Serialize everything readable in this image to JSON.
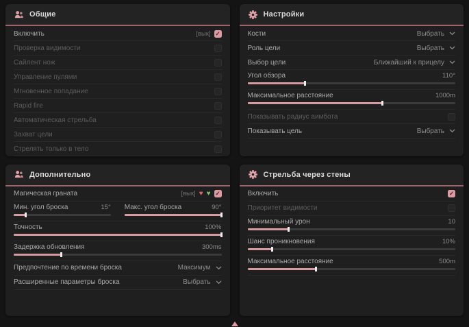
{
  "colors": {
    "accent": "#dc9ba2",
    "accent_line": "#9c646b",
    "panel_bg": "#1f1f1f",
    "page_bg": "#141414"
  },
  "ui": {
    "check_glyph": "✓"
  },
  "panels": [
    {
      "id": "general",
      "icon": "people-icon",
      "title": "Общие",
      "rows": [
        {
          "type": "checkbox",
          "label": "Включить",
          "hint": "[вык]",
          "checked": true,
          "dim": false
        },
        {
          "type": "checkbox",
          "label": "Проверка видимости",
          "checked": false,
          "dim": true
        },
        {
          "type": "checkbox",
          "label": "Сайлент нож",
          "checked": false,
          "dim": true
        },
        {
          "type": "checkbox",
          "label": "Управление пулями",
          "checked": false,
          "dim": true
        },
        {
          "type": "checkbox",
          "label": "Мгновенное попадание",
          "checked": false,
          "dim": true
        },
        {
          "type": "checkbox",
          "label": "Rapid fire",
          "checked": false,
          "dim": true
        },
        {
          "type": "checkbox",
          "label": "Автоматическая стрельба",
          "checked": false,
          "dim": true
        },
        {
          "type": "checkbox",
          "label": "Захват цели",
          "checked": false,
          "dim": true
        },
        {
          "type": "checkbox",
          "label": "Стрелять только в тело",
          "checked": false,
          "dim": true
        }
      ]
    },
    {
      "id": "settings",
      "icon": "gear-icon",
      "title": "Настройки",
      "rows": [
        {
          "type": "select",
          "label": "Кости",
          "value": "Выбрать"
        },
        {
          "type": "select",
          "label": "Роль цели",
          "value": "Выбрать"
        },
        {
          "type": "select",
          "label": "Выбор цели",
          "value": "Ближайший к прицелу"
        },
        {
          "type": "slider",
          "label": "Угол обзора",
          "value": "110°",
          "fill": 28
        },
        {
          "type": "slider",
          "label": "Максимальное расстояние",
          "value": "1000m",
          "fill": 65
        },
        {
          "type": "checkbox",
          "label": "Показывать радиус аимбота",
          "checked": false,
          "dim": true
        },
        {
          "type": "select",
          "label": "Показывать цель",
          "value": "Выбрать"
        }
      ]
    },
    {
      "id": "additional",
      "icon": "people-icon",
      "title": "Дополнительно",
      "rows": [
        {
          "type": "checkbox",
          "label": "Магическая граната",
          "hint": "[вык]",
          "checked": true,
          "dim": false,
          "extra_icons": [
            {
              "name": "heart-red-icon",
              "glyph": "♥",
              "color": "#d66a72"
            },
            {
              "name": "heart-green-icon",
              "glyph": "♥",
              "color": "#7dbd72"
            }
          ]
        },
        {
          "type": "slider-pair",
          "sliders": [
            {
              "label": "Мин. угол броска",
              "value": "15°",
              "fill": 13
            },
            {
              "label": "Макс. угол броска",
              "value": "90°",
              "fill": 100
            }
          ]
        },
        {
          "type": "slider",
          "label": "Точность",
          "value": "100%",
          "fill": 100
        },
        {
          "type": "slider",
          "label": "Задержка обновления",
          "value": "300ms",
          "fill": 23
        },
        {
          "type": "select",
          "label": "Предпочтение по времени броска",
          "value": "Максимум"
        },
        {
          "type": "select",
          "label": "Расширенные параметры броска",
          "value": "Выбрать"
        }
      ]
    },
    {
      "id": "wallbang",
      "icon": "gear-icon",
      "title": "Стрельба через стены",
      "rows": [
        {
          "type": "checkbox",
          "label": "Включить",
          "checked": true,
          "dim": false
        },
        {
          "type": "checkbox",
          "label": "Приоритет видимости",
          "checked": false,
          "dim": true
        },
        {
          "type": "slider",
          "label": "Минимальный урон",
          "value": "10",
          "fill": 20
        },
        {
          "type": "slider",
          "label": "Шанс проникновения",
          "value": "10%",
          "fill": 12
        },
        {
          "type": "slider",
          "label": "Максимальное расстояние",
          "value": "500m",
          "fill": 33
        }
      ]
    }
  ],
  "footer": {
    "indicator": "scroll-up"
  }
}
